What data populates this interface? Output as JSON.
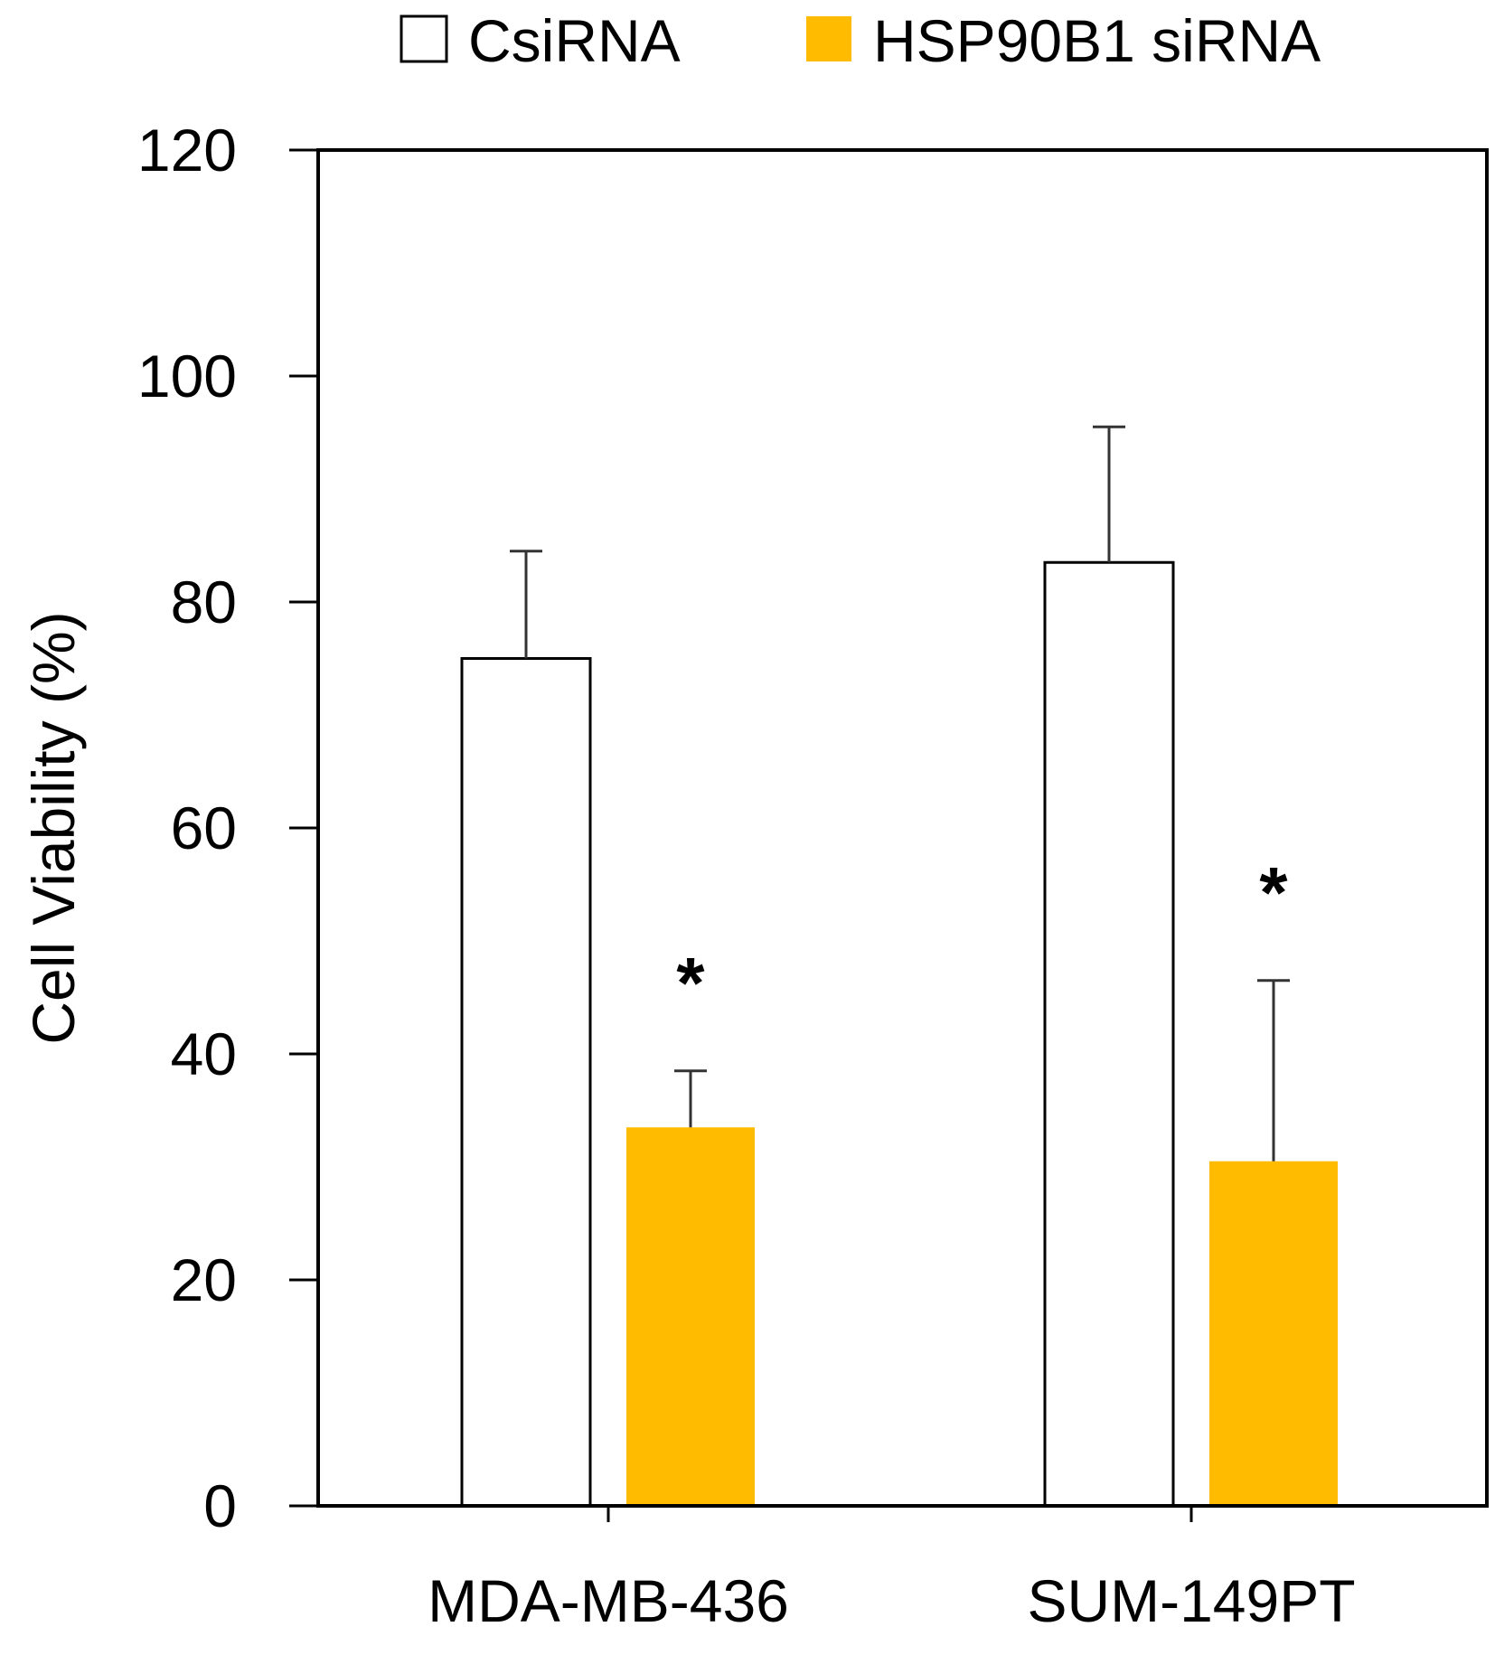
{
  "chart_data": {
    "type": "bar",
    "title": "",
    "xlabel": "",
    "ylabel": "Cell Viability (%)",
    "ylim": [
      0,
      120
    ],
    "yticks": [
      0,
      20,
      40,
      60,
      80,
      100,
      120
    ],
    "grid": false,
    "legend_position": "top",
    "categories": [
      "MDA-MB-436",
      "SUM-149PT"
    ],
    "series": [
      {
        "name": "CsiRNA",
        "color": "#ffffff",
        "values": [
          75,
          83.5
        ],
        "error": [
          9.5,
          12
        ]
      },
      {
        "name": "HSP90B1 siRNA",
        "color": "#ffbb00",
        "values": [
          33.5,
          30.5
        ],
        "error": [
          5,
          16
        ]
      }
    ],
    "annotations": [
      {
        "category": "MDA-MB-436",
        "series": "HSP90B1 siRNA",
        "text": "*"
      },
      {
        "category": "SUM-149PT",
        "series": "HSP90B1 siRNA",
        "text": "*"
      }
    ]
  }
}
